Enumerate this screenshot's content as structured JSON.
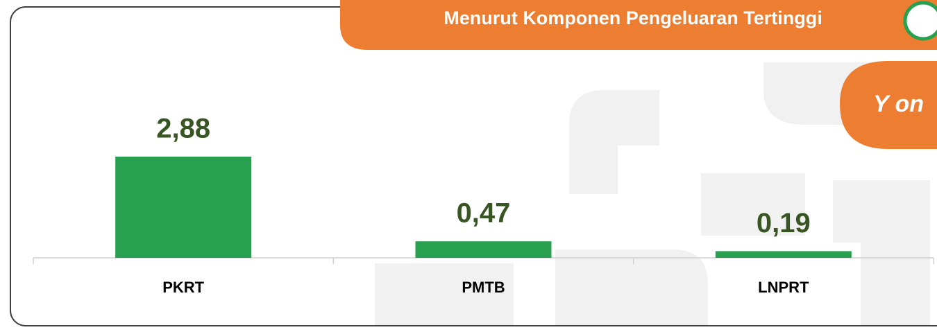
{
  "chart_data": {
    "type": "bar",
    "title": "Menurut Komponen Pengeluaran Tertinggi",
    "subtitle": "Y on",
    "categories": [
      "PKRT",
      "PMTB",
      "LNPRT"
    ],
    "values": [
      2.88,
      0.47,
      0.19
    ],
    "value_labels": [
      "2,88",
      "0,47",
      "0,19"
    ],
    "color": "#27a04f"
  }
}
